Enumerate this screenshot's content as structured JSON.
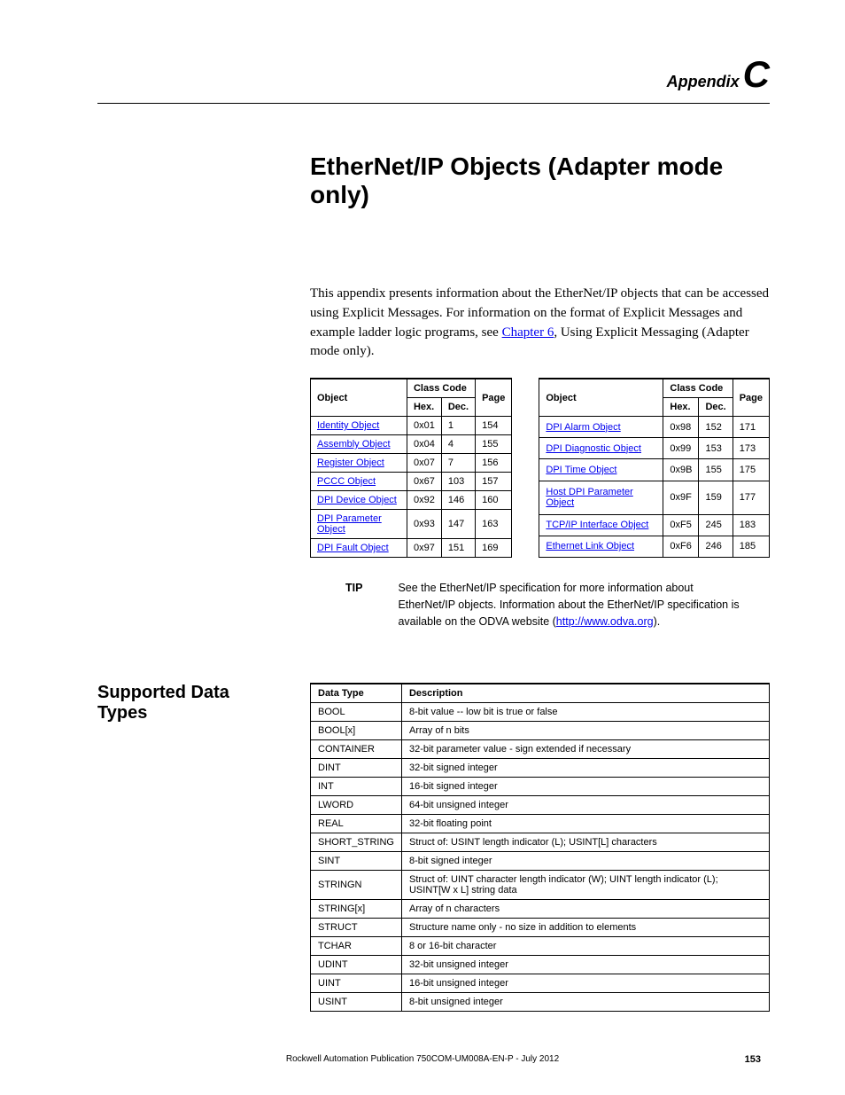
{
  "header": {
    "appendix_label": "Appendix",
    "appendix_letter": "C"
  },
  "title": "EtherNet/IP Objects (Adapter mode only)",
  "intro": {
    "part1": "This appendix presents information about the EtherNet/IP objects that can be accessed using Explicit Messages. For information on the format of Explicit Messages and example ladder logic programs, see ",
    "link": "Chapter 6",
    "part2": ", Using Explicit Messaging (Adapter mode only)."
  },
  "objects_table": {
    "headers": {
      "object": "Object",
      "class_code": "Class Code",
      "hex": "Hex.",
      "dec": "Dec.",
      "page": "Page"
    },
    "left": [
      {
        "name": "Identity Object",
        "hex": "0x01",
        "dec": "1",
        "page": "154"
      },
      {
        "name": "Assembly Object",
        "hex": "0x04",
        "dec": "4",
        "page": "155"
      },
      {
        "name": "Register Object",
        "hex": "0x07",
        "dec": "7",
        "page": "156"
      },
      {
        "name": "PCCC Object",
        "hex": "0x67",
        "dec": "103",
        "page": "157"
      },
      {
        "name": "DPI Device Object",
        "hex": "0x92",
        "dec": "146",
        "page": "160"
      },
      {
        "name": "DPI Parameter Object",
        "hex": "0x93",
        "dec": "147",
        "page": "163"
      },
      {
        "name": "DPI Fault Object",
        "hex": "0x97",
        "dec": "151",
        "page": "169"
      }
    ],
    "right": [
      {
        "name": "DPI Alarm Object",
        "hex": "0x98",
        "dec": "152",
        "page": "171"
      },
      {
        "name": "DPI Diagnostic Object",
        "hex": "0x99",
        "dec": "153",
        "page": "173"
      },
      {
        "name": "DPI Time Object",
        "hex": "0x9B",
        "dec": "155",
        "page": "175"
      },
      {
        "name": "Host DPI Parameter Object",
        "hex": "0x9F",
        "dec": "159",
        "page": "177"
      },
      {
        "name": "TCP/IP Interface Object",
        "hex": "0xF5",
        "dec": "245",
        "page": "183"
      },
      {
        "name": "Ethernet Link Object",
        "hex": "0xF6",
        "dec": "246",
        "page": "185"
      }
    ]
  },
  "tip": {
    "label": "TIP",
    "text1": "See the EtherNet/IP specification for more information about EtherNet/IP objects. Information about the EtherNet/IP specification is available on the ODVA website (",
    "link": "http://www.odva.org",
    "text2": ")."
  },
  "datatypes": {
    "heading": "Supported Data Types",
    "headers": {
      "type": "Data Type",
      "desc": "Description"
    },
    "rows": [
      {
        "type": "BOOL",
        "desc": "8-bit value -- low bit is true or false"
      },
      {
        "type": "BOOL[x]",
        "desc": "Array of n bits"
      },
      {
        "type": "CONTAINER",
        "desc": "32-bit parameter value - sign extended if necessary"
      },
      {
        "type": "DINT",
        "desc": "32-bit signed integer"
      },
      {
        "type": "INT",
        "desc": "16-bit signed integer"
      },
      {
        "type": "LWORD",
        "desc": "64-bit unsigned integer"
      },
      {
        "type": "REAL",
        "desc": "32-bit floating point"
      },
      {
        "type": "SHORT_STRING",
        "desc": "Struct of: USINT length indicator (L); USINT[L] characters"
      },
      {
        "type": "SINT",
        "desc": "8-bit signed integer"
      },
      {
        "type": "STRINGN",
        "desc": "Struct of: UINT character length indicator (W); UINT length indicator (L); USINT[W x L] string data"
      },
      {
        "type": "STRING[x]",
        "desc": "Array of n characters"
      },
      {
        "type": "STRUCT",
        "desc": "Structure name only - no size in addition to elements"
      },
      {
        "type": "TCHAR",
        "desc": "8 or 16-bit character"
      },
      {
        "type": "UDINT",
        "desc": "32-bit unsigned integer"
      },
      {
        "type": "UINT",
        "desc": "16-bit unsigned integer"
      },
      {
        "type": "USINT",
        "desc": "8-bit unsigned integer"
      }
    ]
  },
  "footer": {
    "text": "Rockwell Automation Publication 750COM-UM008A-EN-P - July 2012",
    "page": "153"
  }
}
